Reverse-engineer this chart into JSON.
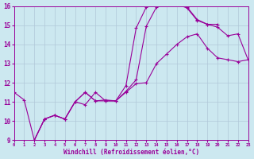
{
  "xlabel": "Windchill (Refroidissement éolien,°C)",
  "bg_color": "#cce8f0",
  "line_color": "#990099",
  "grid_color": "#b0c8d8",
  "xlim": [
    0,
    23
  ],
  "ylim": [
    9,
    16
  ],
  "xticks": [
    0,
    1,
    2,
    3,
    4,
    5,
    6,
    7,
    8,
    9,
    10,
    11,
    12,
    13,
    14,
    15,
    16,
    17,
    18,
    19,
    20,
    21,
    22,
    23
  ],
  "yticks": [
    9,
    10,
    11,
    12,
    13,
    14,
    15,
    16
  ],
  "lines": [
    {
      "x": [
        0,
        1,
        2,
        3,
        4,
        5,
        6,
        7,
        8,
        9,
        10,
        11,
        12,
        13,
        14,
        15,
        16,
        17,
        18,
        19,
        20
      ],
      "y": [
        11.5,
        11.1,
        9.0,
        10.1,
        10.3,
        10.1,
        11.0,
        10.85,
        11.5,
        11.05,
        11.05,
        11.85,
        14.85,
        15.95,
        16.05,
        16.25,
        16.15,
        15.95,
        15.3,
        15.05,
        15.05
      ]
    },
    {
      "x": [
        2,
        3,
        4,
        5,
        6,
        7,
        8,
        9,
        10,
        11,
        12,
        13,
        14,
        15,
        16,
        17,
        18,
        19,
        20,
        21,
        22,
        23
      ],
      "y": [
        9.0,
        10.1,
        10.3,
        10.1,
        11.0,
        11.5,
        11.05,
        11.05,
        11.05,
        11.5,
        11.95,
        12.0,
        13.0,
        13.5,
        14.0,
        14.4,
        14.55,
        13.8,
        13.3,
        13.2,
        13.1,
        13.2
      ]
    },
    {
      "x": [
        2,
        3,
        4,
        5,
        6,
        7,
        8,
        9,
        10,
        11,
        12,
        13,
        14,
        15,
        16,
        17,
        18,
        19,
        20,
        21,
        22,
        23
      ],
      "y": [
        9.0,
        10.1,
        10.3,
        10.1,
        11.0,
        11.5,
        11.05,
        11.1,
        11.05,
        11.55,
        12.15,
        14.95,
        15.95,
        16.15,
        16.1,
        15.9,
        15.25,
        15.05,
        14.9,
        14.45,
        14.55,
        13.2
      ]
    }
  ]
}
